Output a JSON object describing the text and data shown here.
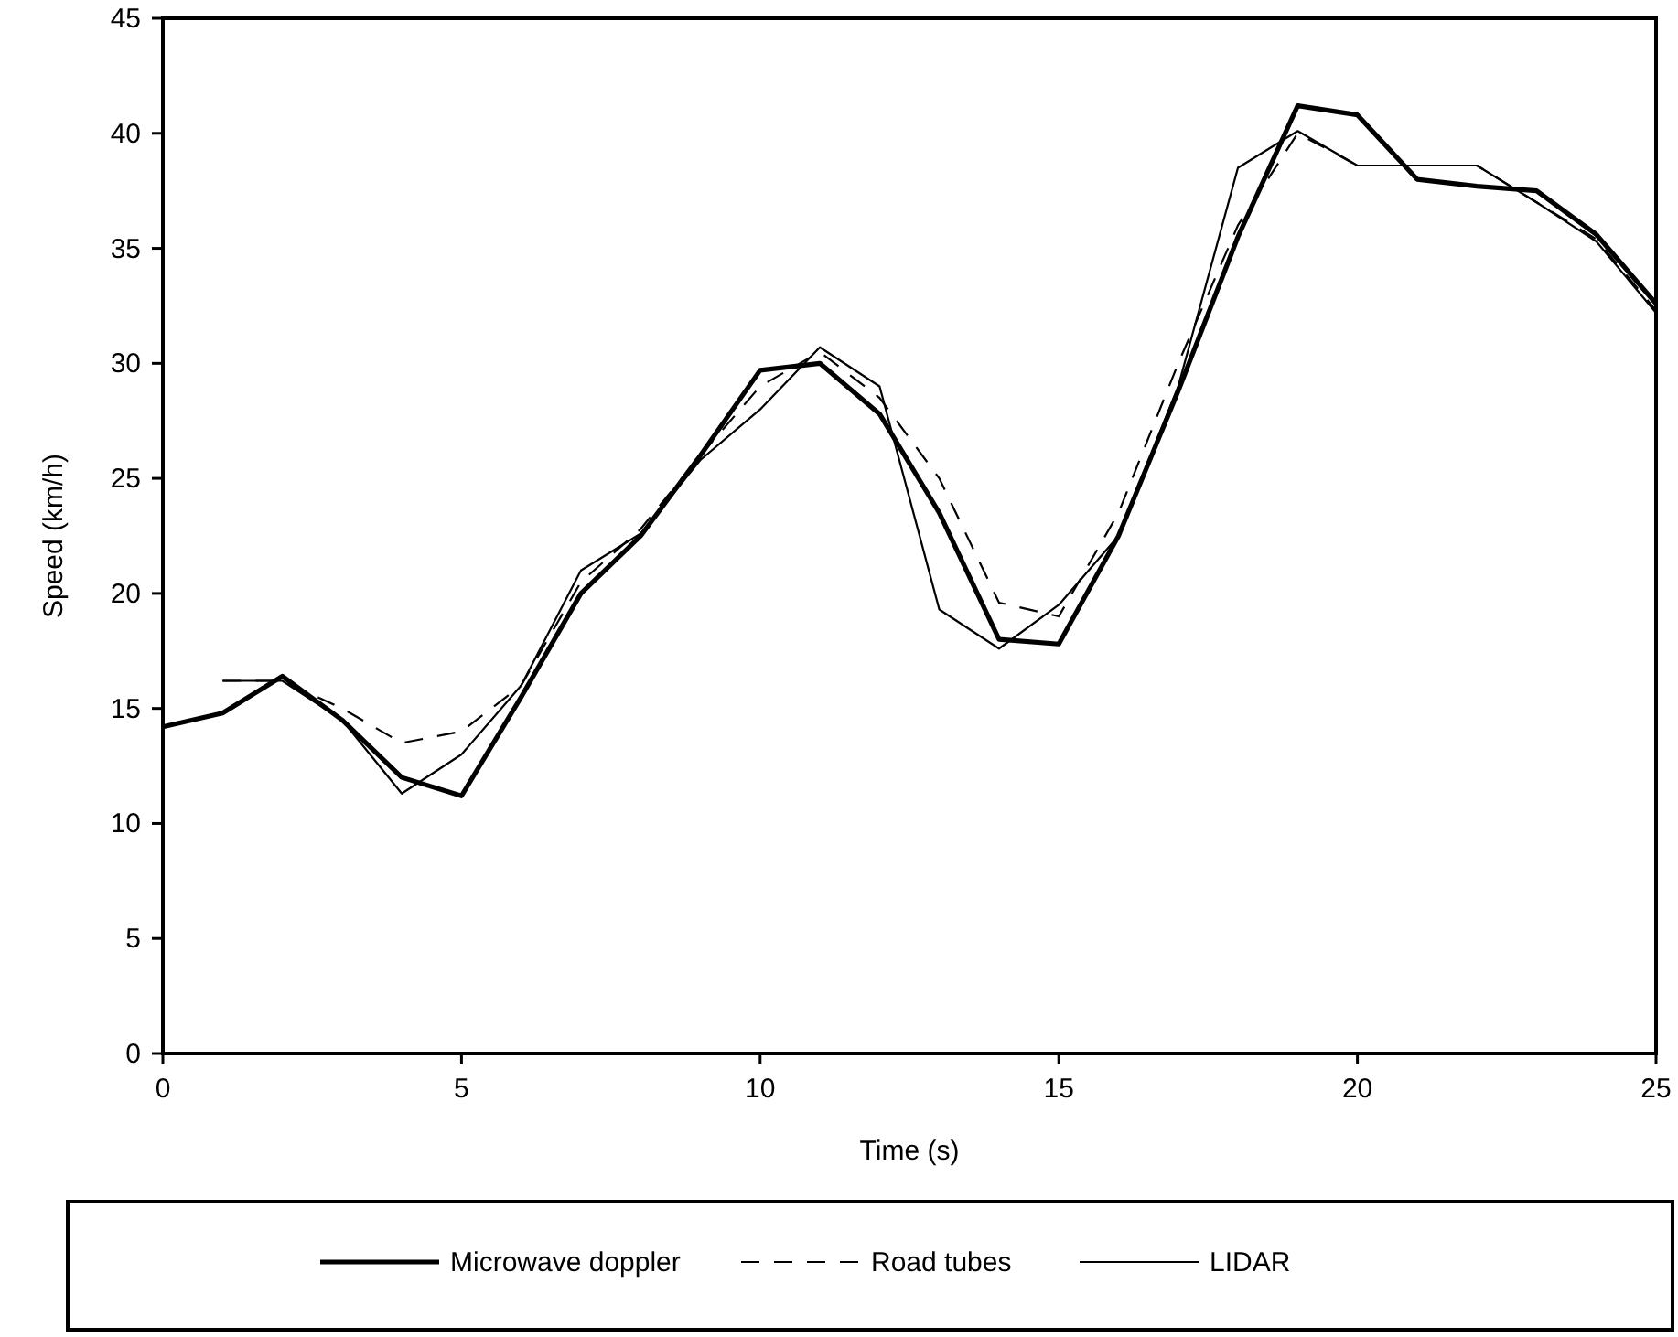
{
  "chart_data": {
    "type": "line",
    "xlabel": "Time (s)",
    "ylabel": "Speed (km/h)",
    "xlim": [
      0,
      25
    ],
    "xticks": [
      0,
      5,
      10,
      15,
      20,
      25
    ],
    "ylim": [
      0,
      45
    ],
    "yticks": [
      0,
      5,
      10,
      15,
      20,
      25,
      30,
      35,
      40,
      45
    ],
    "grid": false,
    "legend": "bottom",
    "series": [
      {
        "name": "Microwave doppler",
        "color": "#000000",
        "line_style": "solid",
        "x": [
          0,
          1,
          2,
          3,
          4,
          5,
          6,
          7,
          8,
          9,
          10,
          11,
          12,
          13,
          14,
          15,
          16,
          17,
          18,
          19,
          20,
          21,
          22,
          23,
          24,
          25
        ],
        "values": [
          14.2,
          14.8,
          16.4,
          14.5,
          12.0,
          11.2,
          15.5,
          20.0,
          22.5,
          26.0,
          29.7,
          30.0,
          27.8,
          23.5,
          18.0,
          17.8,
          22.5,
          28.8,
          35.5,
          41.2,
          40.8,
          38.0,
          37.7,
          37.5,
          35.6,
          32.6
        ]
      },
      {
        "name": "Road tubes",
        "color": "#000000",
        "line_style": "dashed",
        "x": [
          1,
          2,
          3,
          4,
          5,
          6,
          7,
          8,
          9,
          10,
          11,
          12,
          13,
          14,
          15,
          16,
          17,
          18,
          19,
          20,
          21,
          22,
          23,
          24,
          25
        ],
        "values": [
          16.2,
          16.2,
          15.0,
          13.5,
          14.0,
          16.0,
          20.5,
          22.8,
          26.0,
          29.0,
          30.5,
          28.5,
          25.0,
          19.6,
          19.0,
          23.5,
          30.0,
          36.0,
          40.0,
          38.6,
          38.6,
          38.6,
          37.0,
          35.4,
          32.3
        ]
      },
      {
        "name": "LIDAR",
        "color": "#000000",
        "line_style": "solid",
        "x": [
          1,
          2,
          3,
          4,
          5,
          6,
          7,
          8,
          9,
          10,
          11,
          12,
          13,
          14,
          15,
          16,
          17,
          18,
          19,
          20,
          21,
          22,
          23,
          24,
          25
        ],
        "values": [
          16.2,
          16.2,
          14.5,
          11.3,
          13.0,
          16.0,
          21.0,
          22.6,
          25.8,
          28.0,
          30.7,
          29.0,
          19.3,
          17.6,
          19.5,
          22.5,
          29.0,
          38.5,
          40.1,
          38.6,
          38.6,
          38.6,
          37.0,
          35.3,
          32.2
        ]
      }
    ]
  }
}
